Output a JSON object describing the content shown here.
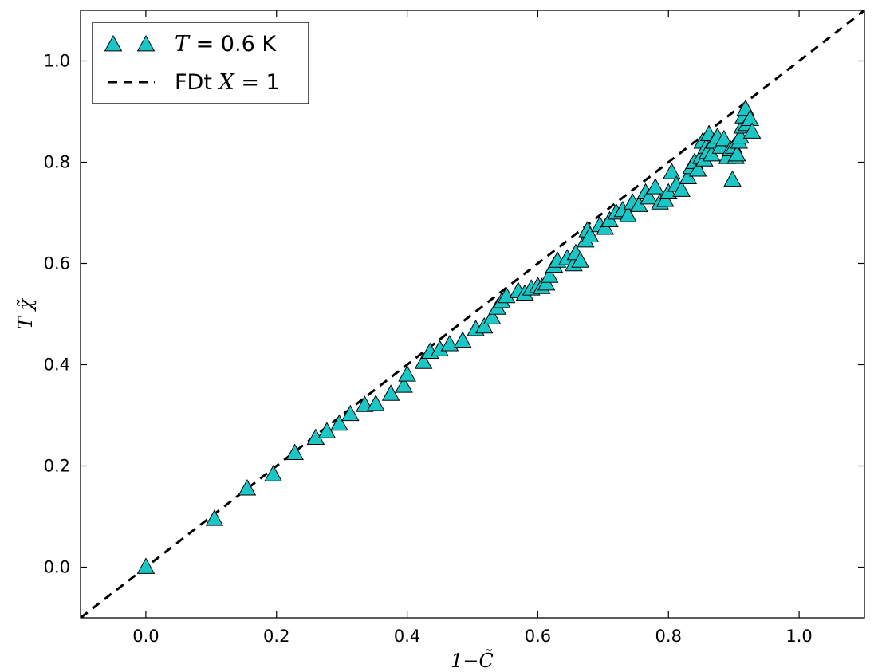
{
  "chart_data": {
    "type": "scatter",
    "xlabel": "1−C̃",
    "ylabel": "T χ̃",
    "xlim": [
      -0.1,
      1.1
    ],
    "ylim": [
      -0.1,
      1.1
    ],
    "xticks": [
      "0.0",
      "0.2",
      "0.4",
      "0.6",
      "0.8",
      "1.0"
    ],
    "yticks": [
      "0.0",
      "0.2",
      "0.4",
      "0.6",
      "0.8",
      "1.0"
    ],
    "xtick_values": [
      0.0,
      0.2,
      0.4,
      0.6,
      0.8,
      1.0
    ],
    "ytick_values": [
      0.0,
      0.2,
      0.4,
      0.6,
      0.8,
      1.0
    ],
    "grid": false,
    "legend_position": "top-left",
    "colors": {
      "marker_fill": "#1ac6c6",
      "marker_edge": "#000000",
      "line": "#000000"
    },
    "series": [
      {
        "name_var": "T",
        "name_rest": " = 0.6 K",
        "kind": "scatter",
        "marker": "triangle-up",
        "x": [
          0.0,
          0.105,
          0.155,
          0.195,
          0.228,
          0.26,
          0.277,
          0.296,
          0.313,
          0.335,
          0.352,
          0.375,
          0.395,
          0.4,
          0.425,
          0.435,
          0.45,
          0.465,
          0.485,
          0.505,
          0.518,
          0.53,
          0.538,
          0.545,
          0.552,
          0.57,
          0.58,
          0.59,
          0.6,
          0.606,
          0.613,
          0.618,
          0.625,
          0.63,
          0.645,
          0.655,
          0.658,
          0.665,
          0.673,
          0.676,
          0.68,
          0.695,
          0.703,
          0.71,
          0.72,
          0.73,
          0.738,
          0.745,
          0.755,
          0.765,
          0.77,
          0.78,
          0.787,
          0.795,
          0.8,
          0.805,
          0.812,
          0.82,
          0.83,
          0.835,
          0.84,
          0.845,
          0.85,
          0.852,
          0.855,
          0.858,
          0.86,
          0.862,
          0.866,
          0.87,
          0.875,
          0.88,
          0.885,
          0.89,
          0.895,
          0.898,
          0.9,
          0.903,
          0.905,
          0.908,
          0.91,
          0.913,
          0.915,
          0.918,
          0.92,
          0.925,
          0.928
        ],
        "y": [
          0.0,
          0.095,
          0.155,
          0.183,
          0.225,
          0.255,
          0.268,
          0.283,
          0.302,
          0.32,
          0.322,
          0.342,
          0.358,
          0.38,
          0.405,
          0.425,
          0.43,
          0.44,
          0.447,
          0.47,
          0.475,
          0.493,
          0.512,
          0.525,
          0.535,
          0.545,
          0.54,
          0.55,
          0.555,
          0.553,
          0.56,
          0.575,
          0.595,
          0.605,
          0.61,
          0.598,
          0.62,
          0.605,
          0.645,
          0.665,
          0.655,
          0.675,
          0.67,
          0.685,
          0.7,
          0.705,
          0.695,
          0.72,
          0.715,
          0.74,
          0.73,
          0.75,
          0.72,
          0.725,
          0.74,
          0.78,
          0.755,
          0.745,
          0.77,
          0.79,
          0.8,
          0.785,
          0.81,
          0.84,
          0.805,
          0.83,
          0.82,
          0.855,
          0.815,
          0.84,
          0.85,
          0.83,
          0.845,
          0.81,
          0.825,
          0.765,
          0.83,
          0.81,
          0.815,
          0.84,
          0.85,
          0.87,
          0.89,
          0.905,
          0.875,
          0.885,
          0.86
        ]
      },
      {
        "name": "FDt ",
        "name_var": "X",
        "name_rest": " = 1",
        "kind": "line",
        "style": "dashed",
        "slope": 1,
        "intercept": 0
      }
    ]
  }
}
